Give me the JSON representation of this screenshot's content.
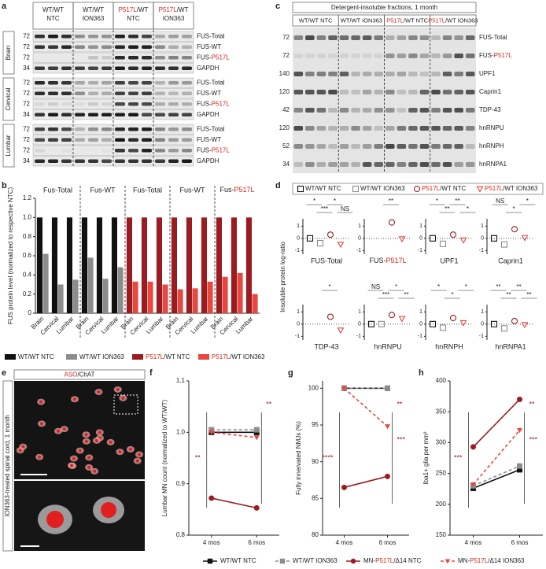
{
  "panel_letters": [
    "a",
    "b",
    "c",
    "d",
    "e",
    "f",
    "g",
    "h"
  ],
  "blot_a": {
    "columns": [
      [
        "WT/WT",
        "NTC"
      ],
      [
        "WT/WT",
        "ION363"
      ],
      [
        "P517L/WT",
        "NTC"
      ],
      [
        "P517L/WT",
        "ION363"
      ]
    ],
    "groups": [
      {
        "name": "Brain",
        "rows": [
          {
            "label": "FUS-Total",
            "mw": 72
          },
          {
            "label": "FUS-WT",
            "mw": 72
          },
          {
            "label": "FUS-P517L",
            "mw": 72
          },
          {
            "label": "GAPDH",
            "mw": 34
          }
        ]
      },
      {
        "name": "Cervical",
        "rows": [
          {
            "label": "FUS-Total",
            "mw": 72
          },
          {
            "label": "FUS-WT",
            "mw": 72
          },
          {
            "label": "FUS-P517L",
            "mw": 72
          },
          {
            "label": "GAPDH",
            "mw": 34
          }
        ]
      },
      {
        "name": "Lumbar",
        "rows": [
          {
            "label": "FUS-Total",
            "mw": 72
          },
          {
            "label": "FUS-WT",
            "mw": 72
          },
          {
            "label": "FUS-P517L",
            "mw": 72
          },
          {
            "label": "GAPDH",
            "mw": 34
          }
        ]
      }
    ]
  },
  "blot_c": {
    "title": "Detergent-insoluble fractions, 1 month",
    "columns": [
      "WT/WT NTC",
      "WT/WT ION363",
      "P517L/WT NTC",
      "P517L/WT ION363"
    ],
    "rows": [
      {
        "label": "FUS-Total",
        "mw": 72
      },
      {
        "label": "FUS-P517L",
        "mw": 72
      },
      {
        "label": "UPF1",
        "mw": 140
      },
      {
        "label": "Caprin1",
        "mw": 120
      },
      {
        "label": "TDP-43",
        "mw": 42
      },
      {
        "label": "hnRNPU",
        "mw": 120
      },
      {
        "label": "hnRNPH",
        "mw": 52
      },
      {
        "label": "hnRNPA1",
        "mw": 34
      }
    ]
  },
  "image_e": {
    "label": "ASO/ChAT",
    "side": "ION363-treated spinal cord, 1 month"
  },
  "chart_data": [
    {
      "type": "grouped_bar",
      "ylabel": "FUS protein level (normalized to respective NTC)",
      "ylim": [
        0,
        1.2
      ],
      "yticks": [
        0,
        0.2,
        0.4,
        0.6,
        0.8,
        {
          "value": 1,
          "label": "1.0"
        },
        1.2
      ],
      "groups": [
        "Fus-Total",
        "Fus-WT",
        "Fus-Total",
        "Fus-WT",
        "Fus-P517L"
      ],
      "categories": [
        "Brain",
        "Cervical",
        "Lumbar",
        "Brain",
        "Cervical",
        "Lumbar",
        "Brain",
        "Cervical",
        "Lumbar",
        "Brain",
        "Cervical",
        "Lumbar",
        "Brain",
        "Cervical",
        "Lumbar"
      ],
      "series": [
        {
          "name": "WT/WT NTC",
          "color": "#111111",
          "values": [
            1,
            1,
            1,
            1,
            1,
            1,
            null,
            null,
            null,
            null,
            null,
            null,
            null,
            null,
            null
          ]
        },
        {
          "name": "WT/WT ION363",
          "color": "#8c8c8c",
          "values": [
            0.62,
            0.3,
            0.35,
            0.58,
            0.36,
            0.48,
            null,
            null,
            null,
            null,
            null,
            null,
            null,
            null,
            null
          ]
        },
        {
          "name": "P517L/WT NTC",
          "color": "#9b1c20",
          "values": [
            null,
            null,
            null,
            null,
            null,
            null,
            1,
            1,
            1,
            1,
            1,
            1,
            1,
            1,
            1
          ]
        },
        {
          "name": "P517L/WT ION363",
          "color": "#e8473f",
          "values": [
            null,
            null,
            null,
            null,
            null,
            null,
            0.33,
            0.33,
            0.3,
            0.25,
            0.26,
            0.33,
            0.38,
            0.42,
            0.2
          ]
        }
      ]
    },
    {
      "type": "dot_panels",
      "ylabel": "Insoluble protein log-ratio",
      "ylim": [
        -1.3,
        1.6
      ],
      "yticks": [
        -1,
        0,
        1
      ],
      "series": [
        {
          "name": "WT/WT NTC",
          "color": "#111111",
          "marker": "square"
        },
        {
          "name": "WT/WT ION363",
          "color": "#8c8c8c",
          "marker": "square"
        },
        {
          "name": "P517L/WT NTC",
          "color": "#9b1c20",
          "marker": "circle"
        },
        {
          "name": "P517L/WT ION363",
          "color": "#e8473f",
          "marker": "triangle"
        }
      ],
      "panels": [
        {
          "title": "FUS-Total",
          "values": [
            0,
            -0.4,
            0.3,
            -0.5
          ],
          "sig": [
            "*",
            "***",
            "*",
            "NS"
          ]
        },
        {
          "title": "FUS-P517L",
          "values": [
            null,
            null,
            1.3,
            -0.05
          ],
          "sig": [
            "**"
          ]
        },
        {
          "title": "UPF1",
          "values": [
            0,
            -0.45,
            0.3,
            -0.15
          ],
          "sig": [
            "*",
            "**",
            "**",
            "*"
          ]
        },
        {
          "title": "Caprin1",
          "values": [
            0,
            -0.5,
            0.75,
            0.05
          ],
          "sig": [
            "NS",
            "*",
            "*"
          ]
        },
        {
          "title": "TDP-43",
          "values": [
            null,
            null,
            0.6,
            -0.5
          ],
          "sig": [
            "*"
          ]
        },
        {
          "title": "hnRNPU",
          "values": [
            0,
            0,
            0.75,
            0.45
          ],
          "sig": [
            "NS",
            "***",
            "*",
            "**"
          ]
        },
        {
          "title": "hnRNPH",
          "values": [
            0,
            -0.3,
            0.5,
            0.1
          ],
          "sig": [
            "*",
            "*",
            "*"
          ]
        },
        {
          "title": "hnRNPA1",
          "values": [
            0,
            -0.35,
            0.25,
            -0.05
          ],
          "sig": [
            "**",
            "**",
            "**",
            "**"
          ]
        }
      ]
    },
    {
      "type": "line",
      "ylabel": "Lumbar MN count (normalized to WT/WT)",
      "categories": [
        "4 mos",
        "6 mos"
      ],
      "ylim": [
        0.8,
        1.1
      ],
      "yticks": [
        0.8,
        0.9,
        {
          "value": 1,
          "label": "1.0"
        },
        1.1
      ],
      "left_marks": [
        "**"
      ],
      "right_marks": [
        "**"
      ],
      "series": [
        {
          "name": "WT/WT NTC",
          "color": "#111111",
          "marker": "square",
          "dashed": false,
          "values": [
            1.0,
            1.0
          ]
        },
        {
          "name": "WT/WT ION363",
          "color": "#8c8c8c",
          "marker": "square",
          "dashed": true,
          "values": [
            1.005,
            1.005
          ]
        },
        {
          "name": "MN-P517L/Δ14 NTC",
          "color": "#9b1c20",
          "marker": "circle",
          "dashed": false,
          "values": [
            0.872,
            0.853
          ]
        },
        {
          "name": "MN-P517L/Δ14 ION363",
          "color": "#e8473f",
          "marker": "triangle",
          "dashed": true,
          "values": [
            1.0,
            0.99
          ]
        }
      ]
    },
    {
      "type": "line",
      "ylabel": "Fully innervated NMJs (%)",
      "categories": [
        "4 mos",
        "6 mos"
      ],
      "ylim": [
        80,
        101
      ],
      "yticks": [
        80,
        85,
        90,
        95,
        100
      ],
      "left_marks": [
        "****"
      ],
      "right_marks": [
        "**",
        "***"
      ],
      "series": [
        {
          "color": "#111111",
          "marker": "square",
          "dashed": false,
          "values": [
            100,
            100
          ]
        },
        {
          "color": "#8c8c8c",
          "marker": "square",
          "dashed": true,
          "values": [
            100,
            100
          ]
        },
        {
          "color": "#9b1c20",
          "marker": "circle",
          "dashed": false,
          "values": [
            86.5,
            88
          ]
        },
        {
          "color": "#e8473f",
          "marker": "triangle",
          "dashed": true,
          "values": [
            100,
            94.8
          ]
        }
      ]
    },
    {
      "type": "line",
      "ylabel": "Iba1+ glia per mm²",
      "categories": [
        "4 mos",
        "6 mos"
      ],
      "ylim": [
        150,
        400
      ],
      "yticks": [
        150,
        200,
        250,
        300,
        350,
        400
      ],
      "left_marks": [
        "***"
      ],
      "right_marks": [
        "**",
        "***"
      ],
      "series": [
        {
          "color": "#111111",
          "marker": "square",
          "dashed": false,
          "values": [
            226,
            256
          ]
        },
        {
          "color": "#8c8c8c",
          "marker": "square",
          "dashed": true,
          "values": [
            230,
            262
          ]
        },
        {
          "color": "#9b1c20",
          "marker": "circle",
          "dashed": false,
          "values": [
            293,
            370
          ]
        },
        {
          "color": "#e8473f",
          "marker": "triangle",
          "dashed": true,
          "values": [
            232,
            320
          ]
        }
      ]
    }
  ]
}
